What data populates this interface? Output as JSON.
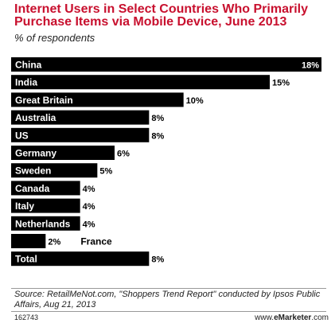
{
  "footer": {
    "source": "Source: RetailMeNot.com, \"Shoppers Trend Report\" conducted by Ipsos Public Affairs, Aug 21, 2013",
    "chart_id": "162743",
    "brand_prefix": "www.",
    "brand_name": "eMarketer",
    "brand_suffix": ".com"
  },
  "chart_data": {
    "type": "bar",
    "orientation": "horizontal",
    "title": "Internet Users in Select Countries Who Primarily Purchase Items via Mobile Device, June 2013",
    "subtitle": "% of respondents",
    "categories": [
      "China",
      "India",
      "Great Britain",
      "Australia",
      "US",
      "Germany",
      "Sweden",
      "Canada",
      "Italy",
      "Netherlands",
      "France",
      "Total"
    ],
    "values": [
      18,
      15,
      10,
      8,
      8,
      6,
      5,
      4,
      4,
      4,
      2,
      8
    ],
    "value_labels": [
      "18%",
      "15%",
      "10%",
      "8%",
      "8%",
      "6%",
      "5%",
      "4%",
      "4%",
      "4%",
      "2%",
      "8%"
    ],
    "xlim": [
      0,
      18
    ],
    "grid": false,
    "bar_color": "#000000",
    "label_color": "#ffffff",
    "title_color": "#c8102e"
  }
}
